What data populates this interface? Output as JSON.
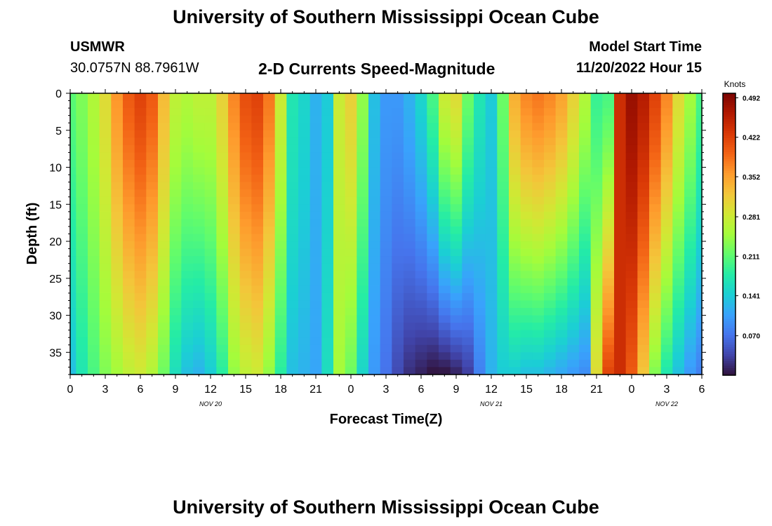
{
  "header": {
    "title": "University of Southern Mississippi Ocean Cube",
    "station": "USMWR",
    "coordinates": "30.0757N  88.7961W",
    "model_start_label": "Model Start Time",
    "model_start_time": "11/20/2022 Hour 15",
    "footer_title": "University of Southern Mississippi Ocean Cube"
  },
  "chart_data": {
    "type": "heatmap",
    "title": "2-D Currents Speed-Magnitude",
    "xlabel": "Forecast Time(Z)",
    "ylabel": "Depth (ft)",
    "x_range_hours": [
      0,
      54
    ],
    "x_tick_labels": [
      "0",
      "3",
      "6",
      "9",
      "12",
      "15",
      "18",
      "21",
      "0",
      "3",
      "6",
      "9",
      "12",
      "15",
      "18",
      "21",
      "0",
      "3",
      "6"
    ],
    "date_labels": [
      {
        "text": "NOV 20",
        "hour": 12
      },
      {
        "text": "NOV 21",
        "hour": 36
      },
      {
        "text": "NOV 22",
        "hour": 51
      }
    ],
    "y_range_ft": [
      0,
      38
    ],
    "y_ticks": [
      0,
      5,
      10,
      15,
      20,
      25,
      30,
      35
    ],
    "colorbar": {
      "label": "Knots",
      "min": 0.0,
      "max": 0.5,
      "tick_labels": [
        "0.492",
        "0.422",
        "0.352",
        "0.281",
        "0.211",
        "0.141",
        "0.070"
      ],
      "colors": [
        "#30123b",
        "#4145ab",
        "#4675ed",
        "#39a2fc",
        "#1bcfd4",
        "#24eca6",
        "#61fc6c",
        "#a4fc3b",
        "#d1e834",
        "#f3c63a",
        "#fe9b2d",
        "#f36315",
        "#d93806",
        "#b11901",
        "#7a0402"
      ]
    },
    "x_hours": [
      0,
      1,
      2,
      3,
      4,
      5,
      6,
      7,
      8,
      9,
      10,
      11,
      12,
      13,
      14,
      15,
      16,
      17,
      18,
      19,
      20,
      21,
      22,
      23,
      24,
      25,
      26,
      27,
      28,
      29,
      30,
      31,
      32,
      33,
      34,
      35,
      36,
      37,
      38,
      39,
      40,
      41,
      42,
      43,
      44,
      45,
      46,
      47,
      48,
      49,
      50,
      51,
      52,
      53,
      54
    ],
    "surface_speed_knots": [
      0.21,
      0.23,
      0.26,
      0.3,
      0.36,
      0.4,
      0.42,
      0.4,
      0.33,
      0.27,
      0.26,
      0.27,
      0.27,
      0.31,
      0.37,
      0.41,
      0.42,
      0.38,
      0.28,
      0.17,
      0.15,
      0.12,
      0.14,
      0.28,
      0.31,
      0.24,
      0.13,
      0.1,
      0.1,
      0.12,
      0.15,
      0.2,
      0.28,
      0.3,
      0.22,
      0.17,
      0.14,
      0.22,
      0.34,
      0.37,
      0.38,
      0.37,
      0.35,
      0.31,
      0.26,
      0.19,
      0.2,
      0.44,
      0.48,
      0.46,
      0.42,
      0.37,
      0.3,
      0.25,
      0.2
    ],
    "bottom_speed_knots": [
      0.13,
      0.17,
      0.2,
      0.23,
      0.25,
      0.27,
      0.28,
      0.26,
      0.22,
      0.16,
      0.13,
      0.12,
      0.14,
      0.18,
      0.24,
      0.27,
      0.28,
      0.24,
      0.18,
      0.13,
      0.12,
      0.11,
      0.16,
      0.25,
      0.22,
      0.15,
      0.1,
      0.07,
      0.04,
      0.02,
      0.01,
      0.0,
      0.0,
      0.01,
      0.03,
      0.08,
      0.12,
      0.14,
      0.14,
      0.13,
      0.13,
      0.12,
      0.11,
      0.1,
      0.09,
      0.3,
      0.42,
      0.44,
      0.4,
      0.32,
      0.23,
      0.17,
      0.13,
      0.1,
      0.08
    ]
  }
}
